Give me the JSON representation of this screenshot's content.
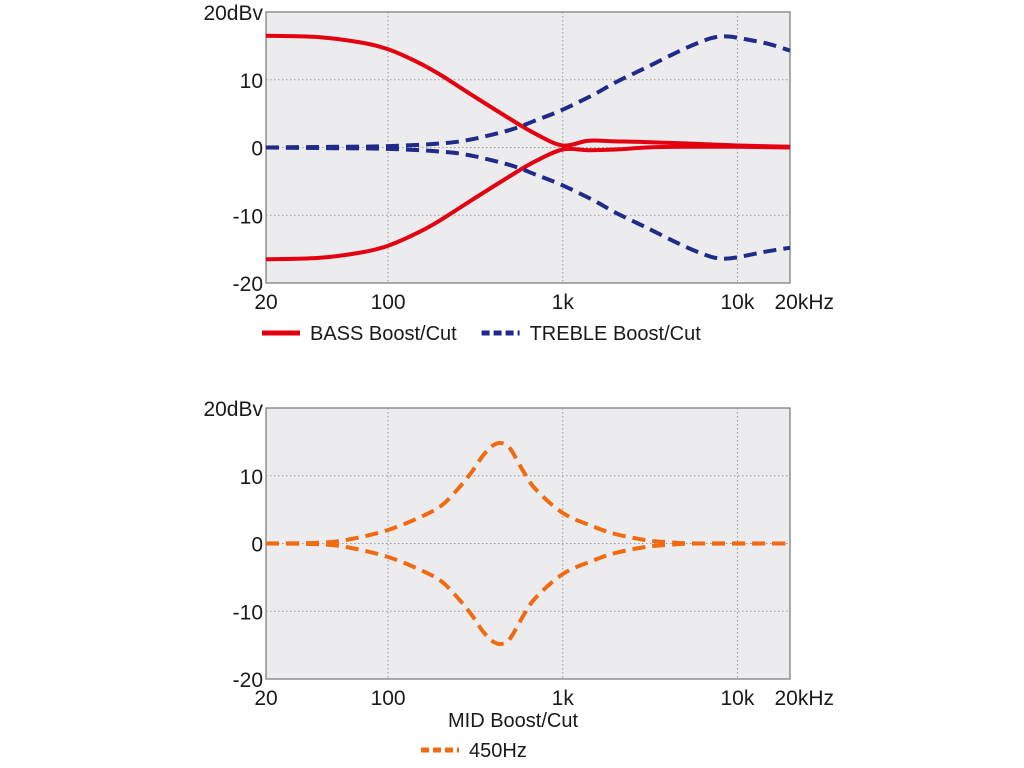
{
  "chart_data": [
    {
      "type": "line",
      "title": "",
      "xlabel": "",
      "ylabel": "",
      "x_scale": "log",
      "xlim": [
        20,
        20000
      ],
      "ylim": [
        -20,
        20
      ],
      "grid": true,
      "x_ticks": [
        {
          "value": 20,
          "label": "20"
        },
        {
          "value": 100,
          "label": "100"
        },
        {
          "value": 1000,
          "label": "1k"
        },
        {
          "value": 10000,
          "label": "10k"
        },
        {
          "value": 20000,
          "label": "20kHz"
        }
      ],
      "y_ticks": [
        {
          "value": 20,
          "label": "20dBv"
        },
        {
          "value": 10,
          "label": "10"
        },
        {
          "value": 0,
          "label": "0"
        },
        {
          "value": -10,
          "label": "-10"
        },
        {
          "value": -20,
          "label": "-20"
        }
      ],
      "legend_position": "bottom",
      "series": [
        {
          "name": "BASS Boost/Cut",
          "legend_label": "BASS Boost/Cut",
          "color": "#e3000f",
          "dash": "solid",
          "curves": [
            {
              "x": [
                20,
                40,
                70,
                100,
                150,
                200,
                300,
                500,
                700,
                1000,
                1400,
                2000,
                3000,
                5000,
                10000,
                20000
              ],
              "y": [
                16.5,
                16.3,
                15.5,
                14.5,
                12.5,
                10.7,
                7.8,
                4.2,
                2.0,
                0.3,
                1.0,
                0.9,
                0.8,
                0.6,
                0.3,
                0.1
              ]
            },
            {
              "x": [
                20,
                40,
                70,
                100,
                150,
                200,
                300,
                500,
                700,
                1000,
                1400,
                2000,
                3000,
                5000,
                10000,
                20000
              ],
              "y": [
                -16.5,
                -16.3,
                -15.5,
                -14.5,
                -12.5,
                -10.7,
                -7.8,
                -4.2,
                -2.0,
                -0.3,
                -0.4,
                -0.3,
                0.0,
                0.1,
                0.1,
                0.0
              ]
            }
          ]
        },
        {
          "name": "TREBLE Boost/Cut",
          "legend_label": "TREBLE Boost/Cut",
          "color": "#1f2a8a",
          "dash": "dashed",
          "curves": [
            {
              "x": [
                20,
                50,
                100,
                200,
                300,
                500,
                700,
                1000,
                1500,
                2000,
                3000,
                5000,
                7000,
                8500,
                10000,
                15000,
                20000
              ],
              "y": [
                0.0,
                0.1,
                0.2,
                0.6,
                1.2,
                2.6,
                4.0,
                5.6,
                7.8,
                9.6,
                11.8,
                14.6,
                16.1,
                16.4,
                16.2,
                15.3,
                14.3
              ]
            },
            {
              "x": [
                20,
                50,
                100,
                200,
                300,
                500,
                700,
                1000,
                1500,
                2000,
                3000,
                5000,
                7000,
                8500,
                10000,
                15000,
                20000
              ],
              "y": [
                0.0,
                -0.1,
                -0.2,
                -0.6,
                -1.2,
                -2.6,
                -4.0,
                -5.6,
                -7.8,
                -9.6,
                -11.8,
                -14.6,
                -16.1,
                -16.4,
                -16.2,
                -15.3,
                -14.8
              ]
            }
          ]
        }
      ]
    },
    {
      "type": "line",
      "title": "MID Boost/Cut",
      "xlabel": "",
      "ylabel": "",
      "x_scale": "log",
      "xlim": [
        20,
        20000
      ],
      "ylim": [
        -20,
        20
      ],
      "grid": true,
      "x_ticks": [
        {
          "value": 20,
          "label": "20"
        },
        {
          "value": 100,
          "label": "100"
        },
        {
          "value": 1000,
          "label": "1k"
        },
        {
          "value": 10000,
          "label": "10k"
        },
        {
          "value": 20000,
          "label": "20kHz"
        }
      ],
      "y_ticks": [
        {
          "value": 20,
          "label": "20dBv"
        },
        {
          "value": 10,
          "label": "10"
        },
        {
          "value": 0,
          "label": "0"
        },
        {
          "value": -10,
          "label": "-10"
        },
        {
          "value": -20,
          "label": "-20"
        }
      ],
      "legend_position": "bottom",
      "series": [
        {
          "name": "450Hz",
          "legend_label": "450Hz",
          "color": "#f26a10",
          "dash": "dashed",
          "curves": [
            {
              "x": [
                20,
                40,
                60,
                100,
                150,
                200,
                250,
                300,
                350,
                400,
                450,
                500,
                600,
                700,
                1000,
                1500,
                2000,
                3000,
                4000,
                6000,
                20000
              ],
              "y": [
                0.0,
                0.1,
                0.6,
                2.0,
                3.8,
                5.5,
                8.0,
                10.5,
                13.0,
                14.5,
                14.8,
                14.0,
                10.5,
                8.0,
                4.5,
                2.5,
                1.4,
                0.5,
                0.2,
                0.0,
                0.0
              ]
            },
            {
              "x": [
                20,
                40,
                60,
                100,
                150,
                200,
                250,
                300,
                350,
                400,
                450,
                500,
                600,
                700,
                1000,
                1500,
                2000,
                3000,
                4000,
                6000,
                20000
              ],
              "y": [
                0.0,
                -0.1,
                -0.6,
                -2.0,
                -3.8,
                -5.5,
                -8.0,
                -10.5,
                -13.0,
                -14.5,
                -14.8,
                -14.0,
                -10.5,
                -8.0,
                -4.5,
                -2.5,
                -1.4,
                -0.5,
                -0.2,
                0.0,
                0.0
              ]
            }
          ]
        }
      ]
    }
  ]
}
